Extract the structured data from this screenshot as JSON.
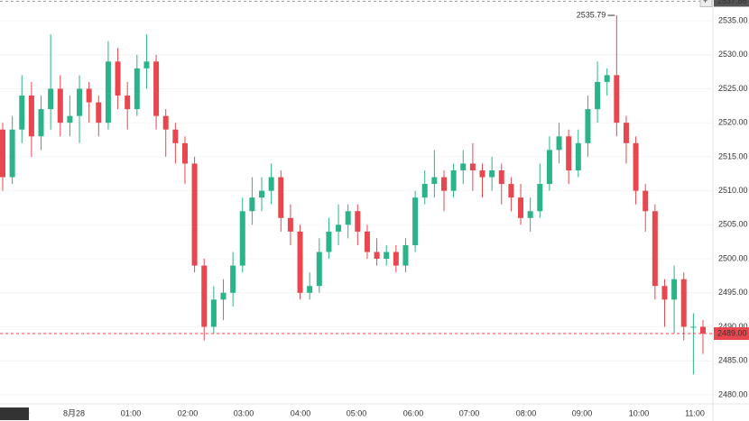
{
  "chart_data": {
    "type": "candlestick",
    "up_color": "#2bb38a",
    "down_color": "#e8474f",
    "grid": true,
    "ylim": [
      2478.8,
      2538.05
    ],
    "yticks": [
      {
        "value": 2480,
        "label": "2480.00"
      },
      {
        "value": 2485,
        "label": "2485.00"
      },
      {
        "value": 2490,
        "label": "2490.00"
      },
      {
        "value": 2495,
        "label": "2495.00"
      },
      {
        "value": 2500,
        "label": "2500.00"
      },
      {
        "value": 2505,
        "label": "2505.00"
      },
      {
        "value": 2510,
        "label": "2510.00"
      },
      {
        "value": 2515,
        "label": "2515.00"
      },
      {
        "value": 2520,
        "label": "2520.00"
      },
      {
        "value": 2525,
        "label": "2525.00"
      },
      {
        "value": 2530,
        "label": "2530.00"
      },
      {
        "value": 2535,
        "label": "2535.00"
      }
    ],
    "x_labels": [
      "27 22:40",
      "8月28",
      "01:00",
      "02:00",
      "03:00",
      "04:00",
      "05:00",
      "06:00",
      "07:00",
      "08:00",
      "09:00",
      "10:00",
      "11:00"
    ],
    "top_price": 2537.86,
    "last_price": {
      "value": 2489,
      "label": "2489.00"
    },
    "max_price": 2535.79,
    "candles": [
      [
        2519,
        2520,
        2510,
        2512
      ],
      [
        2512,
        2521,
        2511,
        2519
      ],
      [
        2519,
        2527,
        2517,
        2524
      ],
      [
        2524,
        2526,
        2515,
        2518
      ],
      [
        2518,
        2524,
        2516,
        2522
      ],
      [
        2522,
        2533,
        2519,
        2525
      ],
      [
        2525,
        2527,
        2518,
        2520
      ],
      [
        2520,
        2524,
        2518,
        2521
      ],
      [
        2521,
        2527,
        2517,
        2525
      ],
      [
        2525,
        2526,
        2520,
        2523
      ],
      [
        2523,
        2524,
        2518,
        2520
      ],
      [
        2520,
        2532,
        2519,
        2529
      ],
      [
        2529,
        2531,
        2522,
        2524
      ],
      [
        2524,
        2526,
        2519,
        2522
      ],
      [
        2522,
        2530,
        2521,
        2528
      ],
      [
        2528,
        2533,
        2525,
        2529
      ],
      [
        2529,
        2530,
        2519,
        2521
      ],
      [
        2521,
        2522,
        2515,
        2519
      ],
      [
        2519,
        2520,
        2514,
        2517
      ],
      [
        2517,
        2518,
        2511,
        2514
      ],
      [
        2514,
        2515,
        2498,
        2499
      ],
      [
        2499,
        2500,
        2488,
        2490
      ],
      [
        2490,
        2496,
        2489,
        2494
      ],
      [
        2494,
        2497,
        2491,
        2495
      ],
      [
        2495,
        2501,
        2493,
        2499
      ],
      [
        2499,
        2509,
        2498,
        2507
      ],
      [
        2507,
        2512,
        2505,
        2509
      ],
      [
        2509,
        2512,
        2507,
        2510
      ],
      [
        2510,
        2514,
        2508,
        2512
      ],
      [
        2512,
        2513,
        2504,
        2506
      ],
      [
        2506,
        2508,
        2502,
        2504
      ],
      [
        2504,
        2505,
        2494,
        2495
      ],
      [
        2495,
        2498,
        2494,
        2496
      ],
      [
        2496,
        2503,
        2495,
        2501
      ],
      [
        2501,
        2506,
        2500,
        2504
      ],
      [
        2504,
        2508,
        2502,
        2505
      ],
      [
        2505,
        2508,
        2503,
        2507
      ],
      [
        2507,
        2508,
        2502,
        2504
      ],
      [
        2504,
        2505,
        2500,
        2501
      ],
      [
        2501,
        2503,
        2499,
        2500
      ],
      [
        2500,
        2502,
        2499,
        2501
      ],
      [
        2501,
        2502,
        2498,
        2499
      ],
      [
        2499,
        2503,
        2498,
        2502
      ],
      [
        2502,
        2510,
        2501,
        2509
      ],
      [
        2509,
        2513,
        2508,
        2511
      ],
      [
        2511,
        2516,
        2509,
        2512
      ],
      [
        2512,
        2513,
        2507,
        2510
      ],
      [
        2510,
        2514,
        2509,
        2513
      ],
      [
        2513,
        2516,
        2511,
        2514
      ],
      [
        2514,
        2517,
        2510,
        2513
      ],
      [
        2513,
        2514,
        2509,
        2512
      ],
      [
        2512,
        2515,
        2510,
        2513
      ],
      [
        2513,
        2514,
        2508,
        2511
      ],
      [
        2511,
        2512,
        2507,
        2509
      ],
      [
        2509,
        2511,
        2505,
        2506
      ],
      [
        2506,
        2509,
        2504,
        2507
      ],
      [
        2507,
        2514,
        2506,
        2511
      ],
      [
        2511,
        2518,
        2510,
        2516
      ],
      [
        2516,
        2520,
        2514,
        2518
      ],
      [
        2518,
        2519,
        2511,
        2513
      ],
      [
        2513,
        2519,
        2512,
        2517
      ],
      [
        2517,
        2524,
        2515,
        2522
      ],
      [
        2522,
        2529,
        2520,
        2526
      ],
      [
        2526,
        2528,
        2524,
        2527
      ],
      [
        2527,
        2535.79,
        2518,
        2520
      ],
      [
        2520,
        2521,
        2514,
        2517
      ],
      [
        2517,
        2518,
        2508,
        2510
      ],
      [
        2510,
        2511,
        2504,
        2507
      ],
      [
        2507,
        2508,
        2494,
        2496
      ],
      [
        2496,
        2497,
        2490,
        2494
      ],
      [
        2494,
        2499,
        2489,
        2497
      ],
      [
        2497,
        2498,
        2488,
        2490
      ],
      [
        2490,
        2492,
        2483,
        2490
      ],
      [
        2490,
        2491,
        2486,
        2489
      ]
    ]
  }
}
